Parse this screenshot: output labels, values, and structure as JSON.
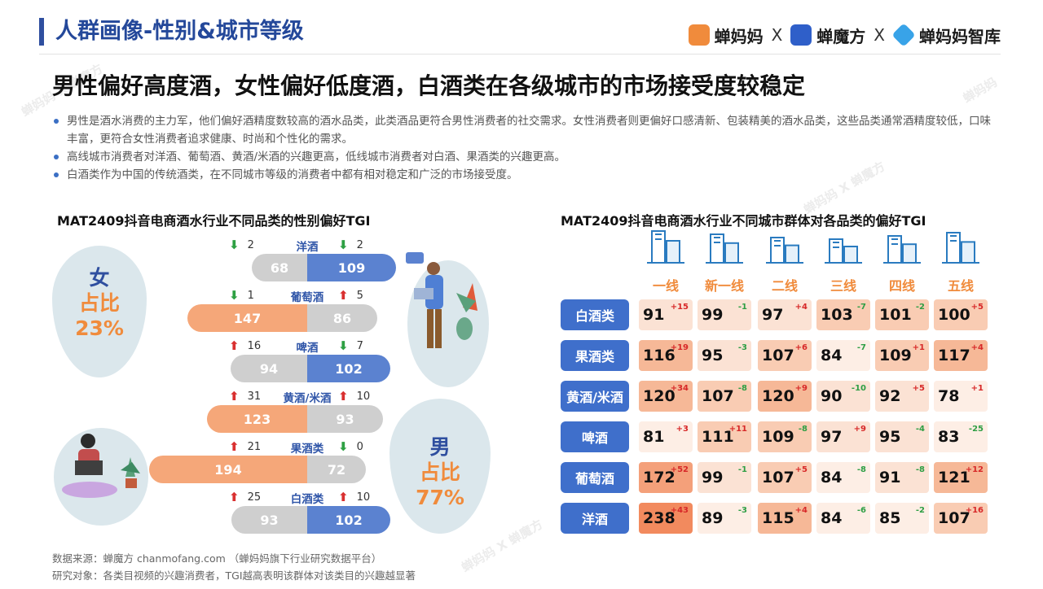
{
  "header": {
    "title": "人群画像-性别&城市等级",
    "brands": [
      "蝉妈妈",
      "X",
      "蝉魔方",
      "X",
      "蝉妈妈智库"
    ]
  },
  "headline": "男性偏好高度酒，女性偏好低度酒，白酒类在各级城市的市场接受度较稳定",
  "bullets": [
    "男性是酒水消费的主力军，他们偏好酒精度数较高的酒水品类，此类酒品更符合男性消费者的社交需求。女性消费者则更偏好口感清新、包装精美的酒水品类，这些品类通常酒精度较低，口味丰富，更符合女性消费者追求健康、时尚和个性化的需求。",
    "高线城市消费者对洋酒、葡萄酒、黄酒/米酒的兴趣更高，低线城市消费者对白酒、果酒类的兴趣更高。",
    "白酒类作为中国的传统酒类，在不同城市等级的消费者中都有相对稳定和广泛的市场接受度。"
  ],
  "female": {
    "label": "女",
    "share_label": "占比",
    "share": "23%"
  },
  "male": {
    "label": "男",
    "share_label": "占比",
    "share": "77%"
  },
  "chart_data": [
    {
      "type": "bar",
      "title": "MAT2409抖音电商酒水行业不同品类的性别偏好TGI",
      "categories": [
        "洋酒",
        "葡萄酒",
        "啤酒",
        "黄酒/米酒",
        "果酒类",
        "白酒类"
      ],
      "series": [
        {
          "name": "女",
          "values": [
            68,
            147,
            94,
            123,
            194,
            93
          ],
          "change": [
            -2,
            -1,
            16,
            31,
            21,
            25
          ]
        },
        {
          "name": "男",
          "values": [
            109,
            86,
            102,
            93,
            72,
            102
          ],
          "change": [
            -2,
            5,
            -7,
            10,
            0,
            10
          ]
        }
      ],
      "change_display": [
        {
          "f": "2",
          "m": "2"
        },
        {
          "f": "1",
          "m": "5"
        },
        {
          "f": "16",
          "m": "7"
        },
        {
          "f": "31",
          "m": "10"
        },
        {
          "f": "21",
          "m": "0"
        },
        {
          "f": "25",
          "m": "10"
        }
      ]
    },
    {
      "type": "heatmap",
      "title": "MAT2409抖音电商酒水行业不同城市群体对各品类的偏好TGI",
      "columns": [
        "一线",
        "新一线",
        "二线",
        "三线",
        "四线",
        "五线"
      ],
      "rows": [
        "白酒类",
        "果酒类",
        "黄酒/米酒",
        "啤酒",
        "葡萄酒",
        "洋酒"
      ],
      "values": [
        [
          91,
          99,
          97,
          103,
          101,
          100
        ],
        [
          116,
          95,
          107,
          84,
          109,
          117
        ],
        [
          120,
          107,
          120,
          90,
          92,
          78
        ],
        [
          81,
          111,
          109,
          97,
          95,
          83
        ],
        [
          172,
          99,
          107,
          84,
          91,
          121
        ],
        [
          238,
          89,
          115,
          84,
          85,
          107
        ]
      ],
      "changes": [
        [
          "+15",
          "-1",
          "+4",
          "-7",
          "-2",
          "+5"
        ],
        [
          "+19",
          "-3",
          "+6",
          "-7",
          "+1",
          "+4"
        ],
        [
          "+34",
          "-8",
          "+9",
          "-10",
          "+5",
          "+1"
        ],
        [
          "+3",
          "+11",
          "-8",
          "+9",
          "-4",
          "-25"
        ],
        [
          "+52",
          "-1",
          "+5",
          "-8",
          "-8",
          "+12"
        ],
        [
          "+43",
          "-3",
          "+4",
          "-6",
          "-2",
          "+16"
        ]
      ]
    }
  ],
  "footer": {
    "source": "数据来源：蝉魔方 chanmofang.com （蝉妈妈旗下行业研究数据平台）",
    "subject": "研究对象：各类目视频的兴趣消费者，TGI越高表明该群体对该类目的兴趣越显著"
  },
  "colors": {
    "accent": "#2f4f9f",
    "female_bar": "#f5a779",
    "male_bar": "#5b82d0",
    "neutral_bar": "#cfcfcf",
    "row_label": "#3f6fcb"
  }
}
